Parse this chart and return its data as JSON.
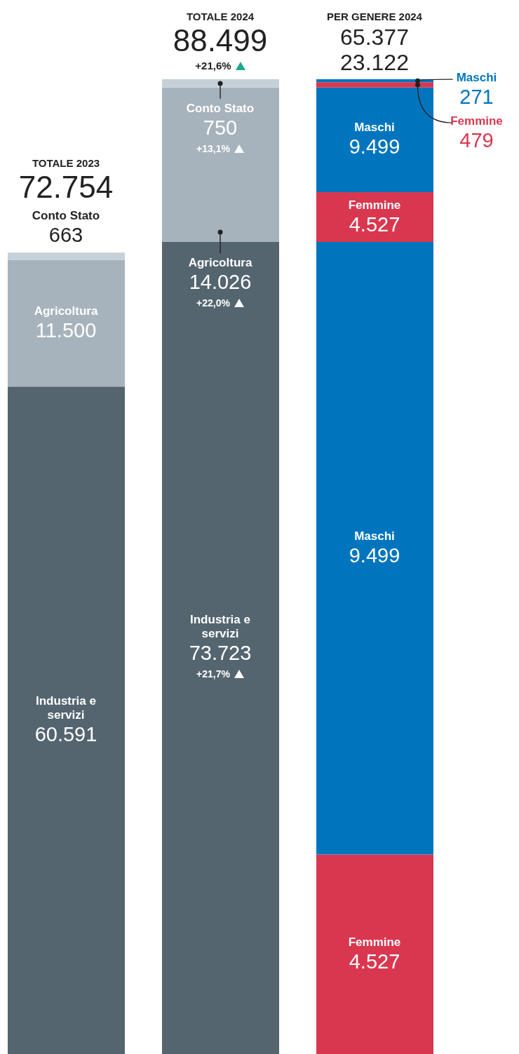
{
  "chart_data": {
    "type": "bar",
    "stacked": true,
    "categories": [
      "TOTALE 2023",
      "TOTALE 2024",
      "PER GENERE 2024"
    ],
    "ylim": [
      0,
      88499
    ],
    "totals": [
      "72.754",
      "88.499",
      null
    ],
    "series": [
      {
        "name": "Industria e servizi",
        "color": "#546570",
        "values": [
          60591,
          73723,
          null
        ],
        "value_labels": [
          "60.591",
          "73.723",
          null
        ]
      },
      {
        "name": "Agricoltura",
        "color": "#a7b3bc",
        "values": [
          11500,
          14026,
          null
        ],
        "value_labels": [
          "11.500",
          "14.026",
          null
        ]
      },
      {
        "name": "Conto Stato",
        "color": "#c5d0d9",
        "values": [
          663,
          750,
          null
        ],
        "value_labels": [
          "663",
          "750",
          null
        ]
      },
      {
        "name": "Femmine",
        "color": "#d9374f",
        "values": [
          null,
          null,
          18116
        ],
        "value_labels": [
          null,
          null,
          null
        ]
      },
      {
        "name": "Maschi",
        "color": "#0075be",
        "values": [
          null,
          null,
          55607
        ],
        "value_labels": [
          null,
          null,
          null
        ]
      },
      {
        "name": "Femmine",
        "color": "#d9374f",
        "values": [
          null,
          null,
          4527
        ],
        "value_labels": [
          null,
          null,
          "4.527"
        ]
      },
      {
        "name": "Maschi",
        "color": "#0075be",
        "values": [
          null,
          null,
          9499
        ],
        "value_labels": [
          null,
          null,
          "9.499"
        ]
      },
      {
        "name": "Femmine",
        "color": "#d9374f",
        "values": [
          null,
          null,
          479
        ],
        "value_labels": [
          null,
          null,
          "479"
        ]
      },
      {
        "name": "Maschi",
        "color": "#0075be",
        "values": [
          null,
          null,
          271
        ],
        "value_labels": [
          null,
          null,
          "271"
        ]
      }
    ],
    "annotations": [
      "4.527",
      "9.499",
      "+21,6%",
      "+13,1%",
      "+22,0%",
      "+21,7%",
      "65.377",
      "23.122"
    ]
  }
}
